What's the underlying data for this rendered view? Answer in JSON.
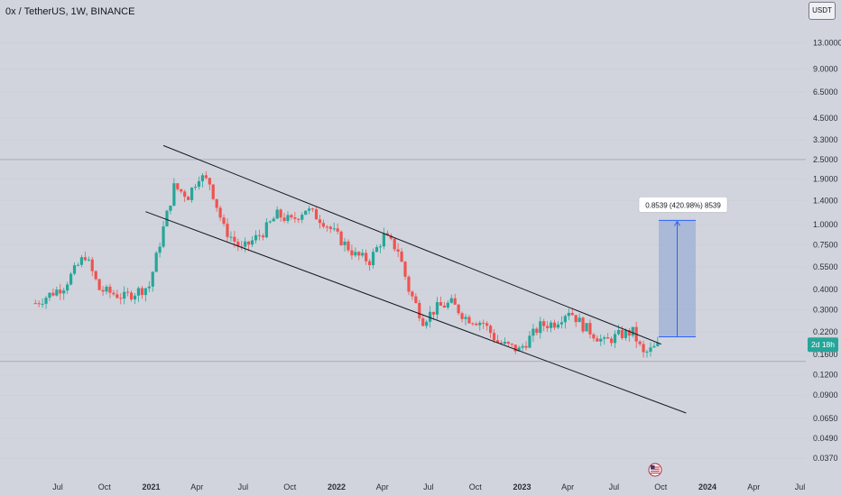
{
  "header": {
    "symbol": "0x / TetherUS, 1W, BINANCE",
    "currency_button": "USDT"
  },
  "colors": {
    "background": "#d1d4dc",
    "up": "#26a69a",
    "down": "#ef5350",
    "measure_fill": "#8fa6d6",
    "measure_line": "#2962ff",
    "price_tag": "#26a69a"
  },
  "price_tag": {
    "label": "2d 18h"
  },
  "measure_box": {
    "label": "0.8539 (420.98%) 8539",
    "from_price": 0.205,
    "to_price": 1.06
  },
  "chart_data": {
    "type": "candlestick",
    "y_scale": "log",
    "ylim": [
      0.038,
      16
    ],
    "y_ticks": [
      {
        "label": "13.0000",
        "value": 13
      },
      {
        "label": "9.0000",
        "value": 9
      },
      {
        "label": "6.5000",
        "value": 6.5
      },
      {
        "label": "4.5000",
        "value": 4.5
      },
      {
        "label": "3.3000",
        "value": 3.3
      },
      {
        "label": "2.5000",
        "value": 2.5
      },
      {
        "label": "1.9000",
        "value": 1.9
      },
      {
        "label": "1.4000",
        "value": 1.4
      },
      {
        "label": "1.0000",
        "value": 1.0
      },
      {
        "label": "0.7500",
        "value": 0.75
      },
      {
        "label": "0.5500",
        "value": 0.55
      },
      {
        "label": "0.4000",
        "value": 0.4
      },
      {
        "label": "0.3000",
        "value": 0.3
      },
      {
        "label": "0.2200",
        "value": 0.22
      },
      {
        "label": "0.1600",
        "value": 0.16
      },
      {
        "label": "0.1200",
        "value": 0.12
      },
      {
        "label": "0.0900",
        "value": 0.09
      },
      {
        "label": "0.0650",
        "value": 0.065
      },
      {
        "label": "0.0490",
        "value": 0.049
      },
      {
        "label": "0.0370",
        "value": 0.037
      }
    ],
    "x_ticks": [
      {
        "label": "Jul",
        "date": "2020-07-01",
        "bold": false
      },
      {
        "label": "Oct",
        "date": "2020-10-01",
        "bold": false
      },
      {
        "label": "2021",
        "date": "2021-01-01",
        "bold": true
      },
      {
        "label": "Apr",
        "date": "2021-04-01",
        "bold": false
      },
      {
        "label": "Jul",
        "date": "2021-07-01",
        "bold": false
      },
      {
        "label": "Oct",
        "date": "2021-10-01",
        "bold": false
      },
      {
        "label": "2022",
        "date": "2022-01-01",
        "bold": true
      },
      {
        "label": "Apr",
        "date": "2022-04-01",
        "bold": false
      },
      {
        "label": "Jul",
        "date": "2022-07-01",
        "bold": false
      },
      {
        "label": "Oct",
        "date": "2022-10-01",
        "bold": false
      },
      {
        "label": "2023",
        "date": "2023-01-01",
        "bold": true
      },
      {
        "label": "Apr",
        "date": "2023-04-01",
        "bold": false
      },
      {
        "label": "Jul",
        "date": "2023-07-01",
        "bold": false
      },
      {
        "label": "Oct",
        "date": "2023-10-01",
        "bold": false
      },
      {
        "label": "2024",
        "date": "2024-01-01",
        "bold": true
      },
      {
        "label": "Apr",
        "date": "2024-04-01",
        "bold": false
      },
      {
        "label": "Jul",
        "date": "2024-07-01",
        "bold": false
      }
    ],
    "horizontal_lines": [
      2.5,
      0.145
    ],
    "channel_lines": [
      {
        "name": "upper",
        "start": {
          "date": "2021-01-25",
          "price": 3.05
        },
        "end": {
          "date": "2023-10-02",
          "price": 0.185
        }
      },
      {
        "name": "lower",
        "start": {
          "date": "2020-12-21",
          "price": 1.2
        },
        "end": {
          "date": "2023-11-20",
          "price": 0.07
        }
      }
    ],
    "anchors": [
      {
        "date": "2020-05-18",
        "price": 0.33
      },
      {
        "date": "2020-07-13",
        "price": 0.42
      },
      {
        "date": "2020-08-24",
        "price": 0.65
      },
      {
        "date": "2020-09-21",
        "price": 0.4
      },
      {
        "date": "2020-11-09",
        "price": 0.36
      },
      {
        "date": "2020-12-28",
        "price": 0.42
      },
      {
        "date": "2021-01-25",
        "price": 0.95
      },
      {
        "date": "2021-02-15",
        "price": 1.7
      },
      {
        "date": "2021-03-15",
        "price": 1.5
      },
      {
        "date": "2021-04-05",
        "price": 2.0
      },
      {
        "date": "2021-04-26",
        "price": 1.8
      },
      {
        "date": "2021-05-24",
        "price": 0.95
      },
      {
        "date": "2021-06-28",
        "price": 0.7
      },
      {
        "date": "2021-08-09",
        "price": 0.9
      },
      {
        "date": "2021-09-06",
        "price": 1.15
      },
      {
        "date": "2021-10-04",
        "price": 1.05
      },
      {
        "date": "2021-11-01",
        "price": 1.25
      },
      {
        "date": "2021-12-06",
        "price": 1.05
      },
      {
        "date": "2022-01-10",
        "price": 0.8
      },
      {
        "date": "2022-02-07",
        "price": 0.65
      },
      {
        "date": "2022-03-07",
        "price": 0.6
      },
      {
        "date": "2022-04-04",
        "price": 0.85
      },
      {
        "date": "2022-05-02",
        "price": 0.7
      },
      {
        "date": "2022-05-23",
        "price": 0.4
      },
      {
        "date": "2022-06-20",
        "price": 0.26
      },
      {
        "date": "2022-07-18",
        "price": 0.31
      },
      {
        "date": "2022-08-15",
        "price": 0.33
      },
      {
        "date": "2022-09-12",
        "price": 0.27
      },
      {
        "date": "2022-10-17",
        "price": 0.25
      },
      {
        "date": "2022-11-14",
        "price": 0.19
      },
      {
        "date": "2022-12-26",
        "price": 0.17
      },
      {
        "date": "2023-02-06",
        "price": 0.24
      },
      {
        "date": "2023-03-06",
        "price": 0.25
      },
      {
        "date": "2023-04-03",
        "price": 0.3
      },
      {
        "date": "2023-05-01",
        "price": 0.24
      },
      {
        "date": "2023-06-12",
        "price": 0.19
      },
      {
        "date": "2023-07-10",
        "price": 0.21
      },
      {
        "date": "2023-08-07",
        "price": 0.22
      },
      {
        "date": "2023-08-28",
        "price": 0.16
      },
      {
        "date": "2023-09-25",
        "price": 0.18
      }
    ]
  }
}
